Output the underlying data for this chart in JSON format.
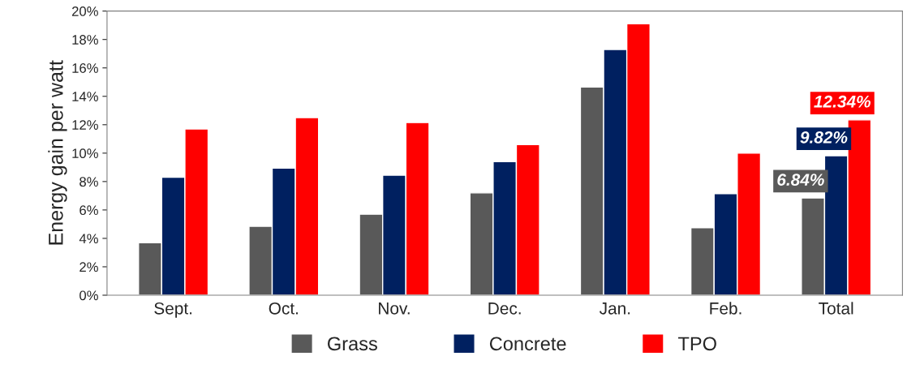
{
  "chart_data": {
    "type": "bar",
    "ylabel": "Energy gain per watt",
    "categories": [
      "Sept.",
      "Oct.",
      "Nov.",
      "Dec.",
      "Jan.",
      "Feb.",
      "Total"
    ],
    "series": [
      {
        "name": "Grass",
        "color": "#595959",
        "values": [
          3.7,
          4.85,
          5.7,
          7.2,
          14.65,
          4.75,
          6.84
        ],
        "value_labels": [
          null,
          null,
          null,
          null,
          null,
          null,
          "6.84%"
        ]
      },
      {
        "name": "Concrete",
        "color": "#002060",
        "values": [
          8.3,
          8.95,
          8.45,
          9.4,
          17.3,
          7.15,
          9.82
        ],
        "value_labels": [
          null,
          null,
          null,
          null,
          null,
          null,
          "9.82%"
        ]
      },
      {
        "name": "TPO",
        "color": "#ff0000",
        "values": [
          11.7,
          12.5,
          12.15,
          10.6,
          19.1,
          10.0,
          12.34
        ],
        "value_labels": [
          null,
          null,
          null,
          null,
          null,
          null,
          "12.34%"
        ]
      }
    ],
    "ylim": [
      0,
      20
    ],
    "yticks": [
      {
        "value": 0,
        "label": "0%"
      },
      {
        "value": 2,
        "label": "2%"
      },
      {
        "value": 4,
        "label": "4%"
      },
      {
        "value": 6,
        "label": "6%"
      },
      {
        "value": 8,
        "label": "8%"
      },
      {
        "value": 10,
        "label": "10%"
      },
      {
        "value": 12,
        "label": "12%"
      },
      {
        "value": 14,
        "label": "14%"
      },
      {
        "value": 16,
        "label": "16%"
      },
      {
        "value": 18,
        "label": "18%"
      },
      {
        "value": 20,
        "label": "20%"
      }
    ],
    "grid": false,
    "legend": "bottom"
  }
}
